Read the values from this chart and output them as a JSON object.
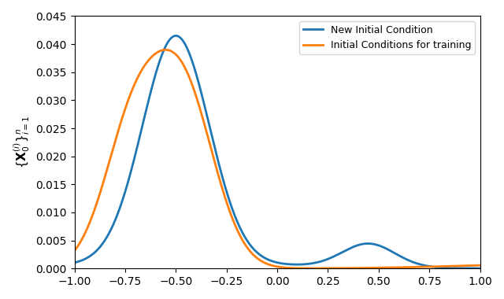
{
  "title": "",
  "xlabel": "",
  "ylabel": "$\\{\\mathbf{X}_0^{(i)}\\}_{i=1}^n$",
  "xlim": [
    -1.0,
    1.0
  ],
  "ylim": [
    0.0,
    0.045
  ],
  "legend_labels": [
    "New Initial Condition",
    "Initial Conditions for training"
  ],
  "blue_color": "#1f77b4",
  "orange_color": "#ff7f0e",
  "line_width": 2.0,
  "yticks": [
    0.0,
    0.005,
    0.01,
    0.015,
    0.02,
    0.025,
    0.03,
    0.035,
    0.04,
    0.045
  ],
  "xticks": [
    -1.0,
    -0.75,
    -0.5,
    -0.25,
    0.0,
    0.25,
    0.5,
    0.75,
    1.0
  ]
}
